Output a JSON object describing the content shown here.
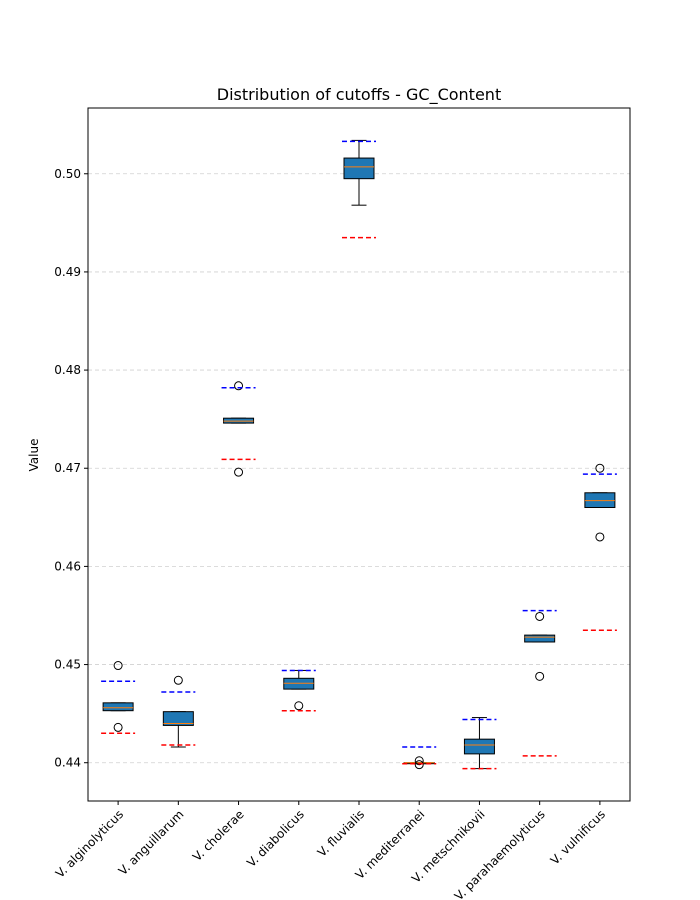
{
  "chart_data": {
    "type": "box",
    "title": "Distribution of cutoffs - GC_Content",
    "ylabel": "Value",
    "categories": [
      "V. alginolyticus",
      "V. anguillarum",
      "V. cholerae",
      "V. diabolicus",
      "V. fluvialis",
      "V. mediterranei",
      "V. metschnikovii",
      "V. parahaemolyticus",
      "V. vulnificus"
    ],
    "boxes": [
      {
        "whislo": 0.4453,
        "q1": 0.4453,
        "med": 0.4456,
        "q3": 0.4461,
        "whishi": 0.4461,
        "fliers": [
          0.4499,
          0.4436
        ]
      },
      {
        "whislo": 0.4416,
        "q1": 0.4438,
        "med": 0.444,
        "q3": 0.4452,
        "whishi": 0.4452,
        "fliers": [
          0.4484
        ]
      },
      {
        "whislo": 0.4746,
        "q1": 0.4746,
        "med": 0.4748,
        "q3": 0.4751,
        "whishi": 0.4751,
        "fliers": [
          0.4784,
          0.4696
        ]
      },
      {
        "whislo": 0.4475,
        "q1": 0.4475,
        "med": 0.4481,
        "q3": 0.4486,
        "whishi": 0.4494,
        "fliers": [
          0.4458
        ]
      },
      {
        "whislo": 0.4968,
        "q1": 0.4995,
        "med": 0.5007,
        "q3": 0.5016,
        "whishi": 0.5034,
        "fliers": []
      },
      {
        "whislo": 0.4399,
        "q1": 0.4399,
        "med": 0.44,
        "q3": 0.44,
        "whishi": 0.44,
        "fliers": [
          0.4402,
          0.4398
        ]
      },
      {
        "whislo": 0.4394,
        "q1": 0.4409,
        "med": 0.4418,
        "q3": 0.4424,
        "whishi": 0.4446,
        "fliers": []
      },
      {
        "whislo": 0.4523,
        "q1": 0.4523,
        "med": 0.4528,
        "q3": 0.453,
        "whishi": 0.453,
        "fliers": [
          0.4549,
          0.4488
        ]
      },
      {
        "whislo": 0.466,
        "q1": 0.466,
        "med": 0.4667,
        "q3": 0.4675,
        "whishi": 0.4675,
        "fliers": [
          0.47,
          0.463
        ]
      }
    ],
    "box_color": "#1f77b4",
    "median_color": "#ff7f0e",
    "reference_lines": [
      {
        "color": "#0000ff",
        "values": [
          0.4483,
          0.4472,
          0.4782,
          0.4494,
          0.5033,
          0.4416,
          0.4444,
          0.4555,
          0.4694
        ]
      },
      {
        "color": "#ff0000",
        "values": [
          0.443,
          0.4418,
          0.4709,
          0.4453,
          0.4935,
          0.4399,
          0.4394,
          0.4407,
          0.4535
        ]
      }
    ],
    "ylim": [
      0.4361,
      0.5067
    ],
    "yticks": [
      0.44,
      0.45,
      0.46,
      0.47,
      0.48,
      0.49,
      {
        "value": 0.5,
        "label": "0.50"
      }
    ],
    "grid": true
  }
}
